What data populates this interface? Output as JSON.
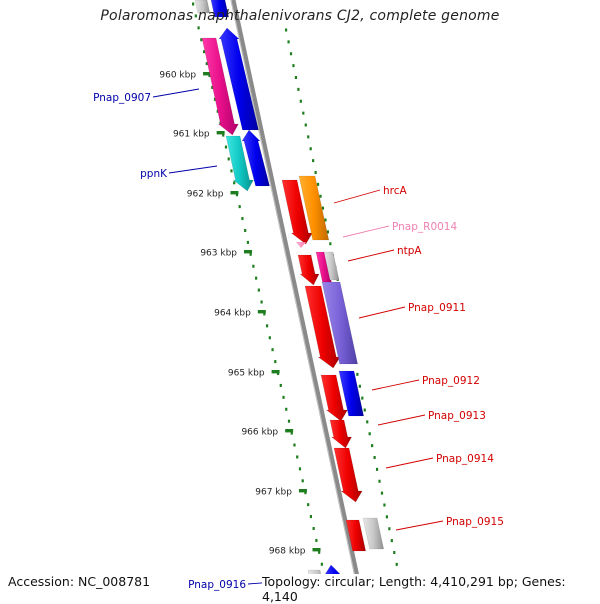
{
  "title": "Polaromonas naphthalenivorans CJ2, complete genome",
  "accession": "Accession: NC_008781",
  "meta": "Topology: circular; Length: 4,410,291 bp; Genes: 4,140",
  "colors": {
    "backbone": "#8a8a8a",
    "tick": "#1e7d1e",
    "left_label": "#0000aa",
    "right_label": "#d40000",
    "rna_label": "#f080b0"
  },
  "ruler": [
    "960 kbp",
    "961 kbp",
    "962 kbp",
    "963 kbp",
    "964 kbp",
    "965 kbp",
    "966 kbp",
    "967 kbp",
    "968 kbp"
  ],
  "left_labels": [
    {
      "text": "Pnap_0907"
    },
    {
      "text": "ppnK"
    },
    {
      "text": "Pnap_0916"
    }
  ],
  "right_labels": [
    {
      "text": "hrcA"
    },
    {
      "text": "Pnap_R0014",
      "rna": true
    },
    {
      "text": "ntpA"
    },
    {
      "text": "Pnap_0911"
    },
    {
      "text": "Pnap_0912"
    },
    {
      "text": "Pnap_0913"
    },
    {
      "text": "Pnap_0914"
    },
    {
      "text": "Pnap_0915"
    }
  ]
}
